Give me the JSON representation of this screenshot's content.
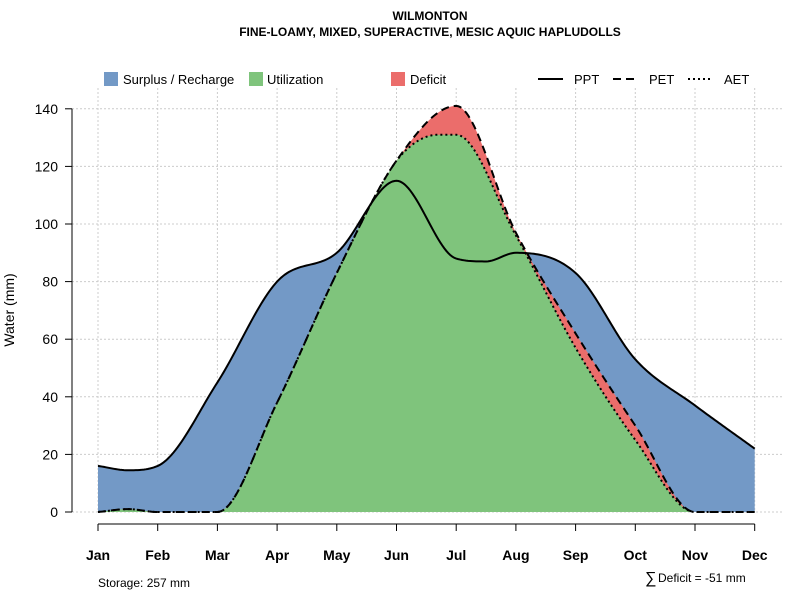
{
  "colors": {
    "surplus": "#7399C6",
    "utilization": "#7FC47C",
    "deficit": "#EB6D6B",
    "line": "#000000",
    "grid": "#CCCCCC"
  },
  "chart_data": {
    "type": "area",
    "title": "WILMONTON",
    "subtitle": "FINE-LOAMY, MIXED, SUPERACTIVE, MESIC AQUIC HAPLUDOLLS",
    "xlabel": "",
    "ylabel": "Water (mm)",
    "ylim": [
      0,
      145
    ],
    "yticks": [
      "0",
      "20",
      "40",
      "60",
      "80",
      "100",
      "120",
      "140"
    ],
    "categories": [
      "Jan",
      "Feb",
      "Mar",
      "Apr",
      "May",
      "Jun",
      "Jul",
      "Aug",
      "Sep",
      "Oct",
      "Nov",
      "Dec"
    ],
    "grid": true,
    "legend_position": "top",
    "legend": [
      {
        "label": "Surplus / Recharge",
        "kind": "fill",
        "color": "surplus"
      },
      {
        "label": "Utilization",
        "kind": "fill",
        "color": "utilization"
      },
      {
        "label": "Deficit",
        "kind": "fill",
        "color": "deficit"
      },
      {
        "label": "PPT",
        "kind": "line",
        "dash": "solid"
      },
      {
        "label": "PET",
        "kind": "line",
        "dash": "dashed"
      },
      {
        "label": "AET",
        "kind": "line",
        "dash": "dotted"
      }
    ],
    "series": [
      {
        "name": "PPT",
        "x": [
          1,
          1.5,
          2,
          3,
          4,
          5,
          6,
          7,
          7.5,
          8,
          9,
          10,
          11,
          12
        ],
        "values": [
          16,
          14.5,
          16,
          45,
          80,
          90,
          115,
          88,
          87,
          90,
          83,
          53,
          37,
          22
        ]
      },
      {
        "name": "PET",
        "x": [
          1,
          1.5,
          2,
          3,
          4,
          5,
          6,
          7,
          8,
          9,
          10,
          11,
          12
        ],
        "values": [
          0,
          1,
          0,
          0,
          38,
          83,
          122,
          141,
          97,
          62,
          30,
          0,
          0
        ]
      },
      {
        "name": "AET",
        "x": [
          1,
          1.5,
          2,
          3,
          4,
          5,
          6,
          6.7,
          7,
          8,
          9,
          10,
          11,
          12
        ],
        "values": [
          0,
          1,
          0,
          0,
          38,
          83,
          122,
          131,
          131,
          96,
          57,
          25,
          0,
          0
        ]
      }
    ],
    "annotations": {
      "storage": "Storage: 257 mm",
      "deficit_symbol": "∑",
      "deficit_text": "Deficit = -51 mm"
    }
  }
}
